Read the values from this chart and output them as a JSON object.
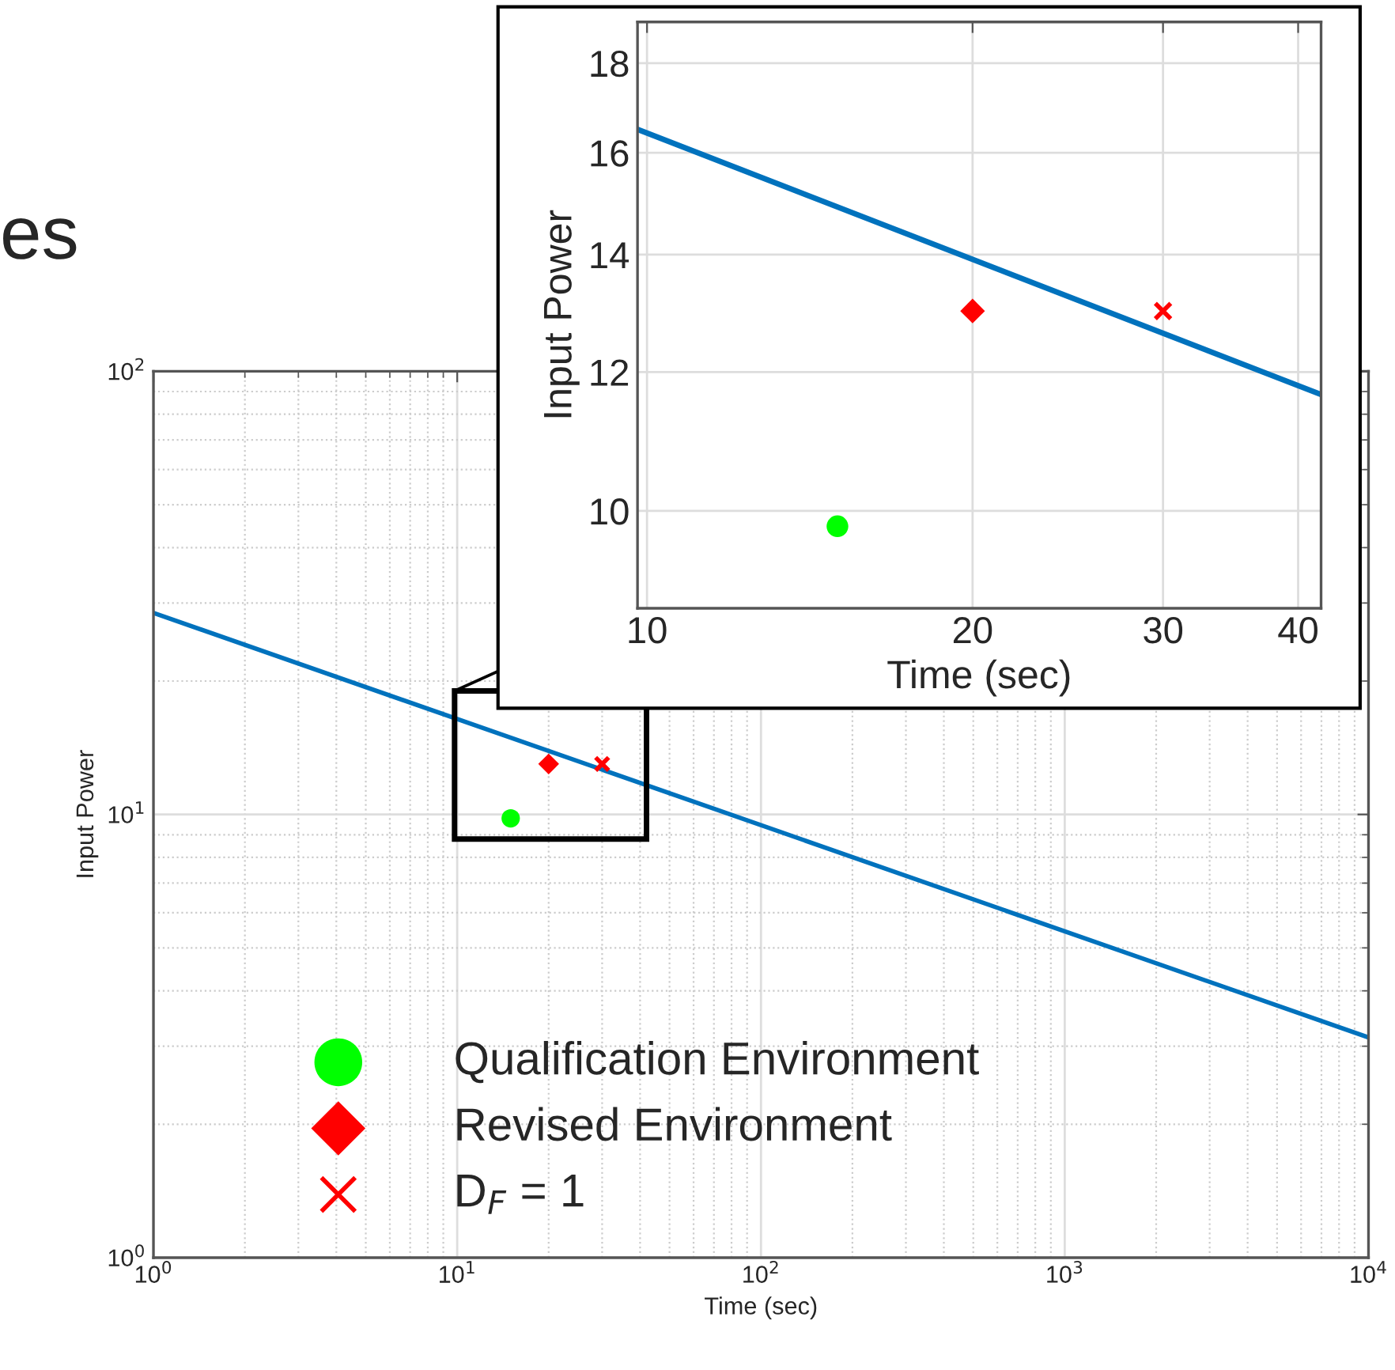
{
  "chart_data": [
    {
      "type": "scatter",
      "xlabel": "Time (sec)",
      "ylabel": "Input Power",
      "annotations": [
        "es"
      ],
      "log": "xy",
      "grid": true,
      "legend": "bottom left",
      "xlim": [
        1,
        10000
      ],
      "ylim": [
        1,
        100
      ],
      "xticks": [
        {
          "value": 1,
          "label": "10$^{0}$"
        },
        {
          "value": 10,
          "label": "10$^{1}$"
        },
        {
          "value": 100,
          "label": "10$^{2}$"
        },
        {
          "value": 1000,
          "label": "10$^{3}$"
        },
        {
          "value": 10000,
          "label": "10$^{4}$"
        }
      ],
      "yticks": [
        {
          "value": 1,
          "label": "10$^{0}$"
        },
        {
          "value": 10,
          "label": "10$^{1}$"
        },
        {
          "value": 100,
          "label": "10$^{2}$"
        }
      ],
      "series": [
        {
          "type": "line",
          "color": "#0072bd",
          "x": [
            1,
            10000
          ],
          "values": [
            28.5,
            3.14
          ],
          "marker": "none",
          "line_style": "solid"
        },
        {
          "name": "Qualification Environment",
          "color": "#00ff00",
          "x": [
            15
          ],
          "values": [
            9.8
          ],
          "marker": "circle"
        },
        {
          "name": "Revised Environment",
          "color": "#ff0000",
          "x": [
            20
          ],
          "values": [
            13
          ],
          "marker": "diamond"
        },
        {
          "name": "D$_{F}$ = 1",
          "color": "#ff0000",
          "x": [
            30
          ],
          "values": [
            13
          ],
          "marker": "cross"
        }
      ]
    },
    {
      "type": "scatter",
      "xlabel": "Time (sec)",
      "ylabel": "Input Power",
      "log": "xy",
      "grid": true,
      "xlim": [
        9.8,
        42
      ],
      "ylim": [
        8.8,
        19
      ],
      "xticks": [
        10,
        20,
        30,
        40
      ],
      "yticks": [
        10,
        12,
        14,
        16,
        18
      ],
      "series": [
        {
          "type": "line",
          "color": "#0072bd",
          "x": [
            9.8,
            42
          ],
          "values": [
            16.5,
            11.65
          ],
          "marker": "none",
          "line_style": "solid"
        },
        {
          "color": "#00ff00",
          "x": [
            15
          ],
          "values": [
            9.8
          ],
          "marker": "circle"
        },
        {
          "color": "#ff0000",
          "x": [
            20
          ],
          "values": [
            13
          ],
          "marker": "diamond"
        },
        {
          "color": "#ff0000",
          "x": [
            30
          ],
          "values": [
            13
          ],
          "marker": "cross"
        }
      ]
    }
  ]
}
